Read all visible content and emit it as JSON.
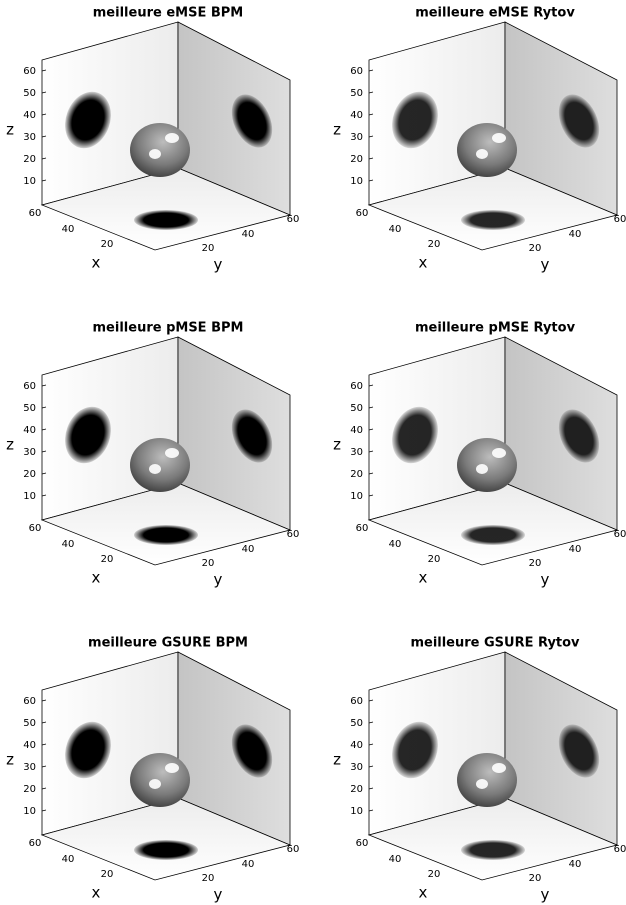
{
  "panels": [
    {
      "title": "meilleure eMSE BPM",
      "xlabel": "x",
      "ylabel": "y",
      "zlabel": "z",
      "zticks": [
        "10",
        "20",
        "30",
        "40",
        "50",
        "60"
      ],
      "xticks": [
        "20",
        "40",
        "60"
      ],
      "yticks": [
        "20",
        "40",
        "60"
      ]
    },
    {
      "title": "meilleure eMSE Rytov",
      "xlabel": "x",
      "ylabel": "y",
      "zlabel": "z",
      "zticks": [
        "10",
        "20",
        "30",
        "40",
        "50",
        "60"
      ],
      "xticks": [
        "20",
        "40",
        "60"
      ],
      "yticks": [
        "20",
        "40",
        "60"
      ]
    },
    {
      "title": "meilleure pMSE BPM",
      "xlabel": "x",
      "ylabel": "y",
      "zlabel": "z",
      "zticks": [
        "10",
        "20",
        "30",
        "40",
        "50",
        "60"
      ],
      "xticks": [
        "20",
        "40",
        "60"
      ],
      "yticks": [
        "20",
        "40",
        "60"
      ]
    },
    {
      "title": "meilleure pMSE Rytov",
      "xlabel": "x",
      "ylabel": "y",
      "zlabel": "z",
      "zticks": [
        "10",
        "20",
        "30",
        "40",
        "50",
        "60"
      ],
      "xticks": [
        "20",
        "40",
        "60"
      ],
      "yticks": [
        "20",
        "40",
        "60"
      ]
    },
    {
      "title": "meilleure GSURE BPM",
      "xlabel": "x",
      "ylabel": "y",
      "zlabel": "z",
      "zticks": [
        "10",
        "20",
        "30",
        "40",
        "50",
        "60"
      ],
      "xticks": [
        "20",
        "40",
        "60"
      ],
      "yticks": [
        "20",
        "40",
        "60"
      ]
    },
    {
      "title": "meilleure GSURE Rytov",
      "xlabel": "x",
      "ylabel": "y",
      "zlabel": "z",
      "zticks": [
        "10",
        "20",
        "30",
        "40",
        "50",
        "60"
      ],
      "xticks": [
        "20",
        "40",
        "60"
      ],
      "yticks": [
        "20",
        "40",
        "60"
      ]
    }
  ]
}
